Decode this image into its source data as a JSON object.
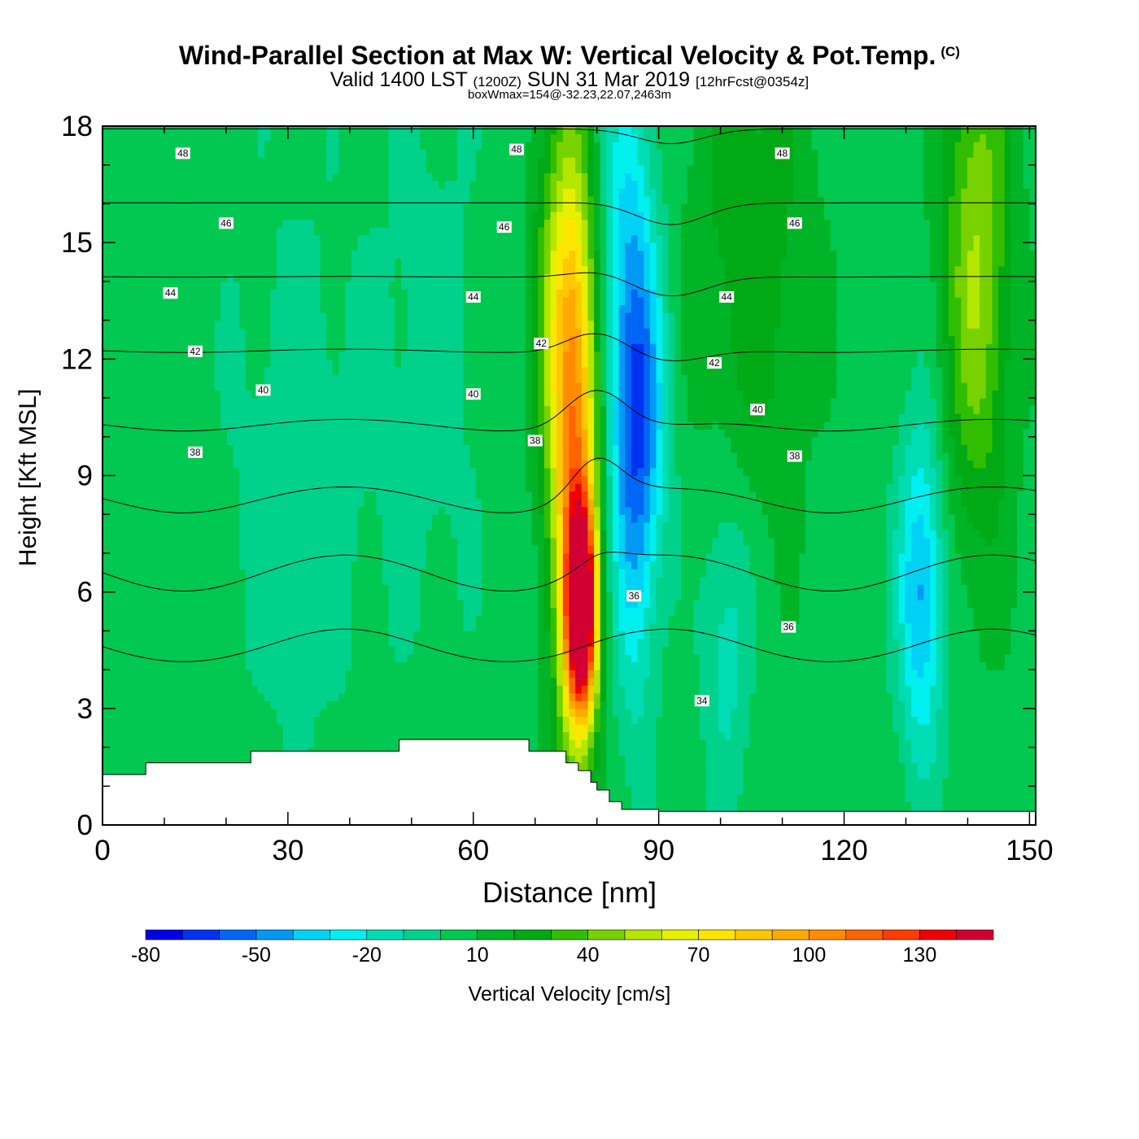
{
  "title": {
    "main": "Wind-Parallel Section at Max W: Vertical Velocity & Pot.Temp.",
    "copyright": "(C)",
    "valid_a": "Valid 1400 LST",
    "valid_b": "(1200Z)",
    "valid_c": "SUN 31 Mar 2019",
    "valid_d": "[12hrFcst@0354z]",
    "subtitle": "boxWmax=154@-32.23,22.07,2463m"
  },
  "chart_data": {
    "type": "heatmap",
    "xlabel": "Distance [nm]",
    "ylabel": "Height [Kft MSL]",
    "xlim": [
      0,
      151
    ],
    "ylim": [
      0,
      18
    ],
    "x_ticks": [
      0,
      30,
      60,
      90,
      120,
      150
    ],
    "y_ticks": [
      0,
      3,
      6,
      9,
      12,
      15,
      18
    ],
    "colorbar": {
      "label": "Vertical Velocity [cm/s]",
      "tick_values": [
        -80,
        -50,
        -20,
        10,
        40,
        70,
        100,
        130
      ],
      "bins": [
        -80,
        -70,
        -60,
        -50,
        -40,
        -30,
        -20,
        -10,
        0,
        10,
        20,
        30,
        40,
        50,
        60,
        70,
        80,
        90,
        100,
        110,
        120,
        130,
        140,
        150
      ],
      "colors": [
        "#0000e6",
        "#0033f0",
        "#0066f5",
        "#0099f5",
        "#00d2f5",
        "#00f0f0",
        "#00dcb4",
        "#00d28c",
        "#00c850",
        "#00b428",
        "#00aa14",
        "#32be00",
        "#78d200",
        "#b4e600",
        "#e6f000",
        "#ffe600",
        "#ffc800",
        "#ffaa00",
        "#ff8c00",
        "#ff6400",
        "#ff3c00",
        "#f00000",
        "#d20032"
      ]
    },
    "background_value": 5,
    "features": [
      {
        "name": "updraft core",
        "x": 77.5,
        "y": 5.5,
        "sx": 1.7,
        "sy": 1.8,
        "value": 145
      },
      {
        "name": "updraft column",
        "x": 76.5,
        "y": 8.5,
        "sx": 2.6,
        "sy": 5.0,
        "value": 85
      },
      {
        "name": "updraft upper",
        "x": 74.5,
        "y": 13.5,
        "sx": 3.2,
        "sy": 3.8,
        "value": 45
      },
      {
        "name": "downdraft core",
        "x": 86.5,
        "y": 10.5,
        "sx": 3.2,
        "sy": 3.0,
        "value": -62
      },
      {
        "name": "downdraft upper",
        "x": 85.0,
        "y": 16.0,
        "sx": 3.0,
        "sy": 3.0,
        "value": -30
      },
      {
        "name": "downdraft lower",
        "x": 86.0,
        "y": 5.5,
        "sx": 2.5,
        "sy": 3.0,
        "value": -20
      },
      {
        "name": "east downdraft",
        "x": 132.5,
        "y": 6.0,
        "sx": 2.6,
        "sy": 3.0,
        "value": -48
      },
      {
        "name": "east updraft",
        "x": 141.5,
        "y": 14.5,
        "sx": 4.0,
        "sy": 5.0,
        "value": 45
      },
      {
        "name": "mid updraft",
        "x": 105.0,
        "y": 15.0,
        "sx": 7.0,
        "sy": 5.0,
        "value": 22
      },
      {
        "name": "mid downdraft",
        "x": 101.0,
        "y": 5.0,
        "sx": 2.8,
        "sy": 3.0,
        "value": -22
      },
      {
        "name": "west band",
        "x": 32.0,
        "y": 9.0,
        "sx": 8.0,
        "sy": 5.0,
        "value": -12
      },
      {
        "name": "west band 2",
        "x": 53.0,
        "y": 12.0,
        "sx": 6.0,
        "sy": 5.0,
        "value": -10
      }
    ],
    "terrain_kft": [
      [
        0,
        1.3
      ],
      [
        7,
        1.6
      ],
      [
        24,
        1.9
      ],
      [
        48,
        2.2
      ],
      [
        69,
        1.9
      ],
      [
        75,
        1.6
      ],
      [
        77,
        1.4
      ],
      [
        79,
        1.1
      ],
      [
        80,
        0.9
      ],
      [
        82,
        0.6
      ],
      [
        84,
        0.4
      ],
      [
        90,
        0.35
      ],
      [
        151,
        0.35
      ]
    ],
    "theta_contours": [
      34,
      36,
      38,
      40,
      42,
      44,
      46,
      48
    ],
    "contour_labels": [
      {
        "text": "48",
        "x": 13,
        "y": 17.3
      },
      {
        "text": "48",
        "x": 67,
        "y": 17.4
      },
      {
        "text": "48",
        "x": 110,
        "y": 17.3
      },
      {
        "text": "46",
        "x": 20,
        "y": 15.5
      },
      {
        "text": "46",
        "x": 65,
        "y": 15.4
      },
      {
        "text": "46",
        "x": 112,
        "y": 15.5
      },
      {
        "text": "44",
        "x": 11,
        "y": 13.7
      },
      {
        "text": "44",
        "x": 60,
        "y": 13.6
      },
      {
        "text": "44",
        "x": 101,
        "y": 13.6
      },
      {
        "text": "42",
        "x": 15,
        "y": 12.2
      },
      {
        "text": "42",
        "x": 71,
        "y": 12.4
      },
      {
        "text": "42",
        "x": 99,
        "y": 11.9
      },
      {
        "text": "40",
        "x": 26,
        "y": 11.2
      },
      {
        "text": "40",
        "x": 60,
        "y": 11.1
      },
      {
        "text": "40",
        "x": 106,
        "y": 10.7
      },
      {
        "text": "38",
        "x": 15,
        "y": 9.6
      },
      {
        "text": "38",
        "x": 70,
        "y": 9.9
      },
      {
        "text": "38",
        "x": 112,
        "y": 9.5
      },
      {
        "text": "36",
        "x": 86,
        "y": 5.9
      },
      {
        "text": "36",
        "x": 111,
        "y": 5.1
      },
      {
        "text": "34",
        "x": 97,
        "y": 3.2
      }
    ]
  }
}
